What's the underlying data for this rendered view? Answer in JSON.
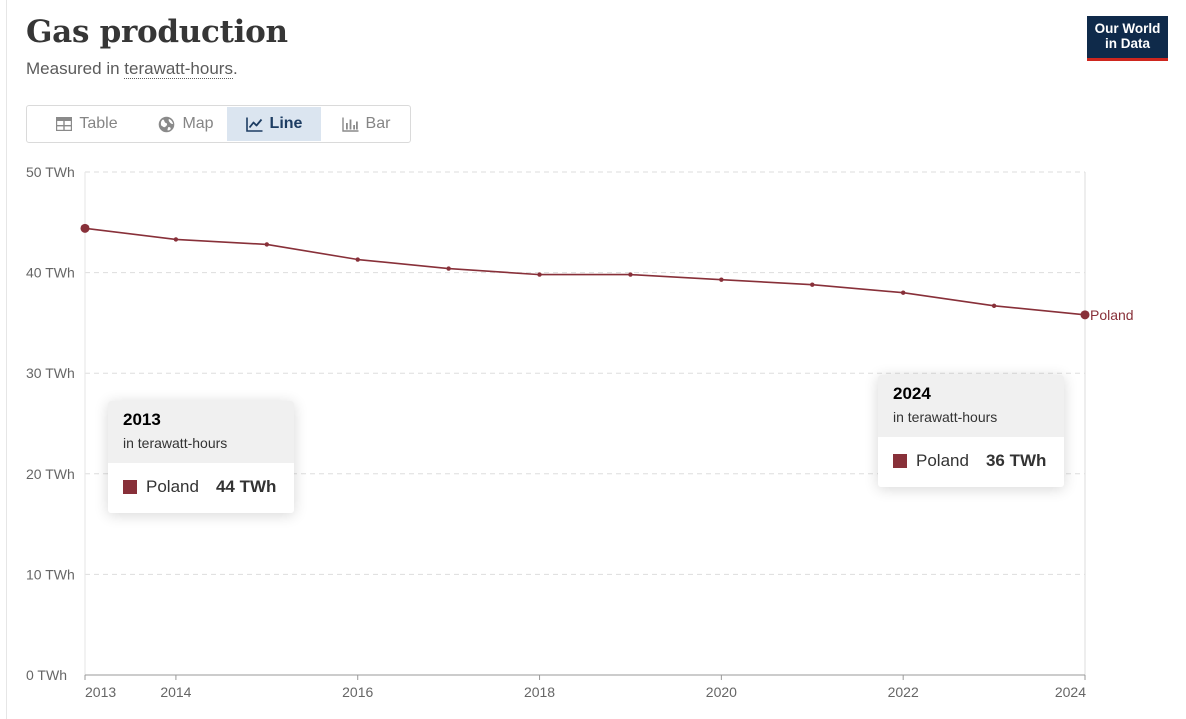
{
  "header": {
    "title": "Gas production",
    "subtitle_prefix": "Measured in ",
    "subtitle_link": "terawatt-hours",
    "subtitle_suffix": "."
  },
  "logo": {
    "line1": "Our World",
    "line2": "in Data"
  },
  "tabs": [
    {
      "label": "Table",
      "icon": "table-icon",
      "active": false
    },
    {
      "label": "Map",
      "icon": "globe-icon",
      "active": false
    },
    {
      "label": "Line",
      "icon": "line-chart-icon",
      "active": true
    },
    {
      "label": "Bar",
      "icon": "bar-chart-icon",
      "active": false
    }
  ],
  "colors": {
    "series": "#883039",
    "grid": "#dddddd",
    "axis": "#666666",
    "brand": "#0f2a4a",
    "brand_accent": "#ce261e"
  },
  "chart_data": {
    "type": "line",
    "title": "Gas production",
    "ylabel": "terawatt-hours",
    "unit": "TWh",
    "x": [
      2013,
      2014,
      2015,
      2016,
      2017,
      2018,
      2019,
      2020,
      2021,
      2022,
      2023,
      2024
    ],
    "series": [
      {
        "name": "Poland",
        "values": [
          44.4,
          43.3,
          42.8,
          41.3,
          40.4,
          39.8,
          39.8,
          39.3,
          38.8,
          38.0,
          36.7,
          35.8
        ]
      }
    ],
    "ylim": [
      0,
      50
    ],
    "yticks": [
      0,
      10,
      20,
      30,
      40,
      50
    ],
    "ytick_labels": [
      "0 TWh",
      "10 TWh",
      "20 TWh",
      "30 TWh",
      "40 TWh",
      "50 TWh"
    ],
    "xticks": [
      2013,
      2014,
      2016,
      2018,
      2020,
      2022,
      2024
    ],
    "xtick_labels": [
      "2013",
      "2014",
      "2016",
      "2018",
      "2020",
      "2022",
      "2024"
    ],
    "grid": true,
    "end_label": "Poland"
  },
  "tooltips": [
    {
      "year": "2013",
      "unit": "in terawatt-hours",
      "entity": "Poland",
      "value": "44 TWh"
    },
    {
      "year": "2024",
      "unit": "in terawatt-hours",
      "entity": "Poland",
      "value": "36 TWh"
    }
  ]
}
